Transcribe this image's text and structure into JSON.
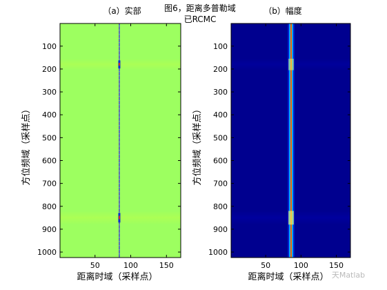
{
  "figure": {
    "title_line1": "图6，距离多普勒域",
    "title_line2": "已RCMC",
    "watermark": "天Matlab"
  },
  "chart_data": [
    {
      "type": "heatmap",
      "title": "（a）实部",
      "xlabel": "距离时域（采样点）",
      "ylabel": "方位频域（采样点）",
      "xlim": [
        1,
        170
      ],
      "ylim": [
        1,
        1024
      ],
      "y_reversed": true,
      "xticks": [
        50,
        100,
        150
      ],
      "yticks": [
        100,
        200,
        300,
        400,
        500,
        600,
        700,
        800,
        900,
        1000
      ],
      "background_value": 0,
      "colormap": "jet",
      "colors": {
        "background": "#9dff60",
        "line": "#1a3fff",
        "hot": "#ff2a00",
        "cold": "#0b2bd4"
      },
      "feature_column": 84,
      "feature_bands": [
        {
          "y_center": 180,
          "half_width": 25,
          "strength": 0.9
        },
        {
          "y_center": 850,
          "half_width": 30,
          "strength": 1.0
        }
      ]
    },
    {
      "type": "heatmap",
      "title": "（b）幅度",
      "xlabel": "距离时域（采样点）",
      "ylabel": "方位频域（采样点）",
      "xlim": [
        1,
        170
      ],
      "ylim": [
        1,
        1024
      ],
      "y_reversed": true,
      "xticks": [
        50,
        100,
        150
      ],
      "yticks": [
        100,
        200,
        300,
        400,
        500,
        600,
        700,
        800,
        900,
        1000
      ],
      "colormap": "jet",
      "colors": {
        "background": "#00008f",
        "line_core": "#ff6a00",
        "line_mid": "#00c8ff",
        "line_edge": "#0035ff"
      },
      "feature_column": 86,
      "feature_bands": [
        {
          "y_center": 180,
          "half_width": 25,
          "strength": 0.8
        },
        {
          "y_center": 850,
          "half_width": 30,
          "strength": 1.0
        }
      ]
    }
  ]
}
